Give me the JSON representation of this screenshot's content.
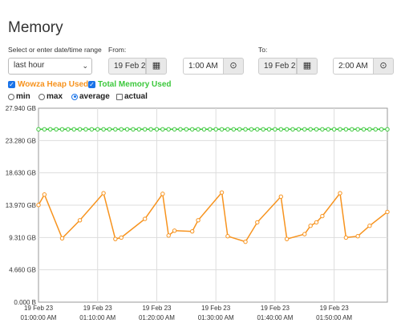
{
  "page": {
    "title": "Memory"
  },
  "range": {
    "label": "Select or enter date/time range",
    "selected": "last hour"
  },
  "from": {
    "label": "From:",
    "date": "19 Feb 2",
    "time": "1:00 AM"
  },
  "to": {
    "label": "To:",
    "date": "19 Feb 2",
    "time": "2:00 AM"
  },
  "series_toggles": [
    {
      "label": "Wowza Heap Used",
      "checked": true,
      "color": "#f7931e"
    },
    {
      "label": "Total Memory Used",
      "checked": true,
      "color": "#3cc83c"
    }
  ],
  "stat_options": [
    {
      "label": "min",
      "type": "radio",
      "selected": false
    },
    {
      "label": "max",
      "type": "radio",
      "selected": false
    },
    {
      "label": "average",
      "type": "radio",
      "selected": true
    },
    {
      "label": "actual",
      "type": "checkbox",
      "selected": false
    }
  ],
  "icons": {
    "calendar": "calendar-icon",
    "clock": "clock-icon",
    "dropdown": "chevron-down-icon"
  },
  "chart_data": {
    "type": "line",
    "y_ticks": [
      "0.000 B",
      "4.660 GB",
      "9.310 GB",
      "13.970 GB",
      "18.630 GB",
      "23.280 GB",
      "27.940 GB"
    ],
    "ylim": [
      0,
      27.94
    ],
    "xlim": [
      0,
      59
    ],
    "x_ticks": [
      {
        "x": 0,
        "line1": "19 Feb 23",
        "line2": "01:00:00 AM"
      },
      {
        "x": 10,
        "line1": "19 Feb 23",
        "line2": "01:10:00 AM"
      },
      {
        "x": 20,
        "line1": "19 Feb 23",
        "line2": "01:20:00 AM"
      },
      {
        "x": 30,
        "line1": "19 Feb 23",
        "line2": "01:30:00 AM"
      },
      {
        "x": 40,
        "line1": "19 Feb 23",
        "line2": "01:40:00 AM"
      },
      {
        "x": 50,
        "line1": "19 Feb 23",
        "line2": "01:50:00 AM"
      }
    ],
    "grid": true,
    "series": [
      {
        "name": "Wowza Heap Used",
        "color": "#f7931e",
        "points": [
          [
            0,
            14.0
          ],
          [
            1,
            15.5
          ],
          [
            4,
            9.2
          ],
          [
            7,
            11.8
          ],
          [
            11,
            15.7
          ],
          [
            13,
            9.1
          ],
          [
            14,
            9.3
          ],
          [
            18,
            12.0
          ],
          [
            21,
            15.6
          ],
          [
            22,
            9.6
          ],
          [
            23,
            10.3
          ],
          [
            26,
            10.2
          ],
          [
            27,
            11.8
          ],
          [
            31,
            15.8
          ],
          [
            32,
            9.5
          ],
          [
            35,
            8.7
          ],
          [
            37,
            11.5
          ],
          [
            41,
            15.2
          ],
          [
            42,
            9.1
          ],
          [
            45,
            9.8
          ],
          [
            46,
            11.0
          ],
          [
            47,
            11.5
          ],
          [
            48,
            12.4
          ],
          [
            51,
            15.7
          ],
          [
            52,
            9.3
          ],
          [
            54,
            9.5
          ],
          [
            56,
            11.0
          ],
          [
            59,
            13.0
          ]
        ]
      },
      {
        "name": "Total Memory Used",
        "color": "#3cc83c",
        "constant": 24.9,
        "points_count": 60
      }
    ]
  }
}
